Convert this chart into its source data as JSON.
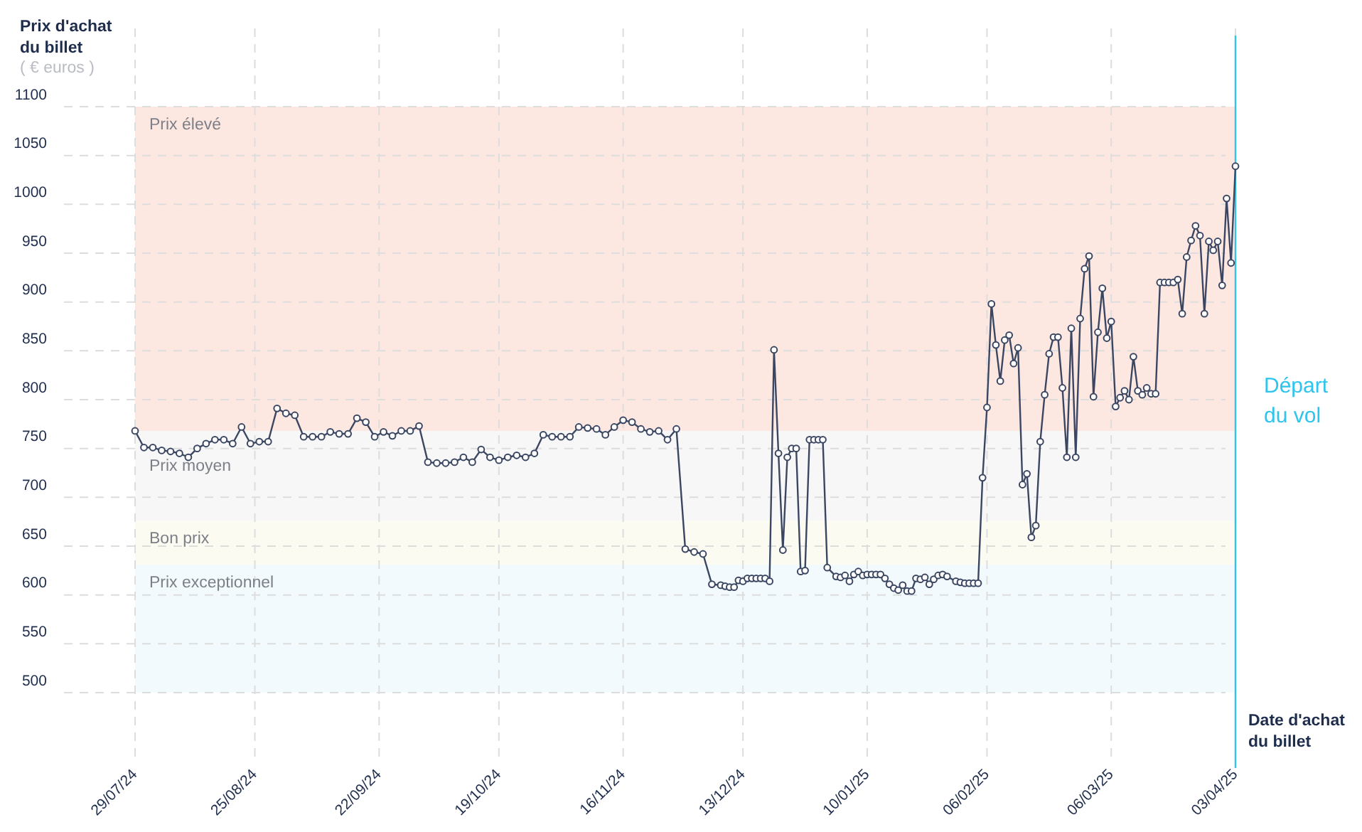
{
  "chart_data": {
    "type": "line",
    "xlabel": "Date d'achat du billet",
    "ylabel": "Prix d'achat du billet",
    "annotations": [
      "( € euros )"
    ],
    "x": [
      "2024-07-29",
      "2024-07-31",
      "2024-08-02",
      "2024-08-04",
      "2024-08-06",
      "2024-08-08",
      "2024-08-10",
      "2024-08-12",
      "2024-08-14",
      "2024-08-16",
      "2024-08-18",
      "2024-08-20",
      "2024-08-22",
      "2024-08-24",
      "2024-08-26",
      "2024-08-28",
      "2024-08-30",
      "2024-09-01",
      "2024-09-03",
      "2024-09-05",
      "2024-09-07",
      "2024-09-09",
      "2024-09-11",
      "2024-09-13",
      "2024-09-15",
      "2024-09-17",
      "2024-09-19",
      "2024-09-21",
      "2024-09-23",
      "2024-09-25",
      "2024-09-27",
      "2024-09-29",
      "2024-10-01",
      "2024-10-03",
      "2024-10-05",
      "2024-10-07",
      "2024-10-09",
      "2024-10-11",
      "2024-10-13",
      "2024-10-15",
      "2024-10-17",
      "2024-10-19",
      "2024-10-21",
      "2024-10-23",
      "2024-10-25",
      "2024-10-27",
      "2024-10-29",
      "2024-10-31",
      "2024-11-02",
      "2024-11-04",
      "2024-11-06",
      "2024-11-08",
      "2024-11-10",
      "2024-11-12",
      "2024-11-14",
      "2024-11-16",
      "2024-11-18",
      "2024-11-20",
      "2024-11-22",
      "2024-11-24",
      "2024-11-26",
      "2024-11-28",
      "2024-11-30",
      "2024-12-02",
      "2024-12-04",
      "2024-12-06",
      "2024-12-08",
      "2024-12-09",
      "2024-12-10",
      "2024-12-11",
      "2024-12-12",
      "2024-12-13",
      "2024-12-14",
      "2024-12-15",
      "2024-12-16",
      "2024-12-17",
      "2024-12-18",
      "2024-12-19",
      "2024-12-20",
      "2024-12-21",
      "2024-12-22",
      "2024-12-23",
      "2024-12-24",
      "2024-12-25",
      "2024-12-26",
      "2024-12-27",
      "2024-12-28",
      "2024-12-29",
      "2024-12-30",
      "2024-12-31",
      "2025-01-01",
      "2025-01-03",
      "2025-01-04",
      "2025-01-05",
      "2025-01-06",
      "2025-01-07",
      "2025-01-08",
      "2025-01-09",
      "2025-01-10",
      "2025-01-11",
      "2025-01-12",
      "2025-01-13",
      "2025-01-14",
      "2025-01-15",
      "2025-01-16",
      "2025-01-17",
      "2025-01-18",
      "2025-01-19",
      "2025-01-20",
      "2025-01-21",
      "2025-01-22",
      "2025-01-23",
      "2025-01-24",
      "2025-01-25",
      "2025-01-26",
      "2025-01-27",
      "2025-01-28",
      "2025-01-30",
      "2025-01-31",
      "2025-02-01",
      "2025-02-02",
      "2025-02-03",
      "2025-02-04",
      "2025-02-05",
      "2025-02-06",
      "2025-02-07",
      "2025-02-08",
      "2025-02-09",
      "2025-02-10",
      "2025-02-11",
      "2025-02-12",
      "2025-02-13",
      "2025-02-14",
      "2025-02-15",
      "2025-02-16",
      "2025-02-17",
      "2025-02-18",
      "2025-02-19",
      "2025-02-20",
      "2025-02-21",
      "2025-02-22",
      "2025-02-23",
      "2025-02-24",
      "2025-02-25",
      "2025-02-26",
      "2025-02-27",
      "2025-02-28",
      "2025-03-01",
      "2025-03-02",
      "2025-03-03",
      "2025-03-04",
      "2025-03-05",
      "2025-03-06",
      "2025-03-07",
      "2025-03-08",
      "2025-03-09",
      "2025-03-10",
      "2025-03-11",
      "2025-03-12",
      "2025-03-13",
      "2025-03-14",
      "2025-03-15",
      "2025-03-16",
      "2025-03-17",
      "2025-03-18",
      "2025-03-19",
      "2025-03-20",
      "2025-03-21",
      "2025-03-22",
      "2025-03-23",
      "2025-03-24",
      "2025-03-25",
      "2025-03-26",
      "2025-03-27",
      "2025-03-28",
      "2025-03-29",
      "2025-03-30",
      "2025-03-31",
      "2025-04-01",
      "2025-04-02",
      "2025-04-03"
    ],
    "values": [
      768,
      751,
      751,
      748,
      747,
      745,
      741,
      750,
      755,
      759,
      759,
      755,
      772,
      755,
      757,
      757,
      791,
      786,
      784,
      762,
      762,
      762,
      767,
      765,
      765,
      781,
      777,
      762,
      767,
      763,
      768,
      768,
      773,
      736,
      735,
      735,
      736,
      741,
      736,
      749,
      741,
      738,
      741,
      743,
      741,
      745,
      764,
      762,
      762,
      762,
      772,
      771,
      770,
      764,
      772,
      779,
      777,
      770,
      767,
      768,
      759,
      770,
      647,
      644,
      642,
      611,
      610,
      609,
      608,
      608,
      615,
      614,
      617,
      617,
      617,
      617,
      617,
      614,
      851,
      745,
      646,
      741,
      750,
      750,
      624,
      625,
      759,
      759,
      759,
      759,
      628,
      619,
      618,
      620,
      614,
      621,
      624,
      620,
      621,
      621,
      621,
      621,
      617,
      611,
      607,
      605,
      610,
      604,
      604,
      617,
      616,
      618,
      611,
      616,
      620,
      621,
      619,
      614,
      613,
      612,
      612,
      612,
      612,
      720,
      792,
      898,
      856,
      819,
      861,
      866,
      837,
      853,
      713,
      724,
      659,
      671,
      757,
      805,
      847,
      864,
      864,
      812,
      741,
      873,
      741,
      883,
      934,
      947,
      803,
      869,
      914,
      863,
      880,
      793,
      802,
      809,
      800,
      844,
      809,
      805,
      812,
      806,
      806,
      920,
      920,
      920,
      920,
      923,
      888,
      946,
      963,
      978,
      968,
      888,
      962,
      953,
      962,
      917,
      1006,
      940,
      1039
    ],
    "color": "#3b4762",
    "marker": "circle",
    "line_style": "solid",
    "xlim": [
      "2024-07-29",
      "2025-04-03"
    ],
    "xticks": [
      {
        "value": "2024-07-29",
        "label": "29/07/24"
      },
      {
        "value": "2024-08-25",
        "label": "25/08/24"
      },
      {
        "value": "2024-09-22",
        "label": "22/09/24"
      },
      {
        "value": "2024-10-19",
        "label": "19/10/24"
      },
      {
        "value": "2024-11-16",
        "label": "16/11/24"
      },
      {
        "value": "2024-12-13",
        "label": "13/12/24"
      },
      {
        "value": "2025-01-10",
        "label": "10/01/25"
      },
      {
        "value": "2025-02-06",
        "label": "06/02/25"
      },
      {
        "value": "2025-03-06",
        "label": "06/03/25"
      },
      {
        "value": "2025-04-03",
        "label": "03/04/25"
      }
    ],
    "ylim": [
      500,
      1100
    ],
    "yticks": [
      500,
      550,
      600,
      650,
      700,
      750,
      800,
      850,
      900,
      950,
      1000,
      1050,
      1100
    ],
    "grid": true,
    "bands": [
      {
        "axis": "y",
        "from": 768,
        "to": 1100,
        "label": "Prix élevé",
        "color": "#fde7e1"
      },
      {
        "axis": "y",
        "from": 676,
        "to": 768,
        "label": "Prix moyen",
        "color": "#f7f7f7"
      },
      {
        "axis": "y",
        "from": 631,
        "to": 676,
        "label": "Bon prix",
        "color": "#fbfbf1"
      },
      {
        "axis": "y",
        "from": 500,
        "to": 631,
        "label": "Prix exceptionnel",
        "color": "#f2fafd"
      }
    ],
    "ref_lines": [
      {
        "axis": "x",
        "value": "2025-04-03",
        "label": "Départ du vol",
        "color": "#2ec4ee"
      }
    ]
  }
}
